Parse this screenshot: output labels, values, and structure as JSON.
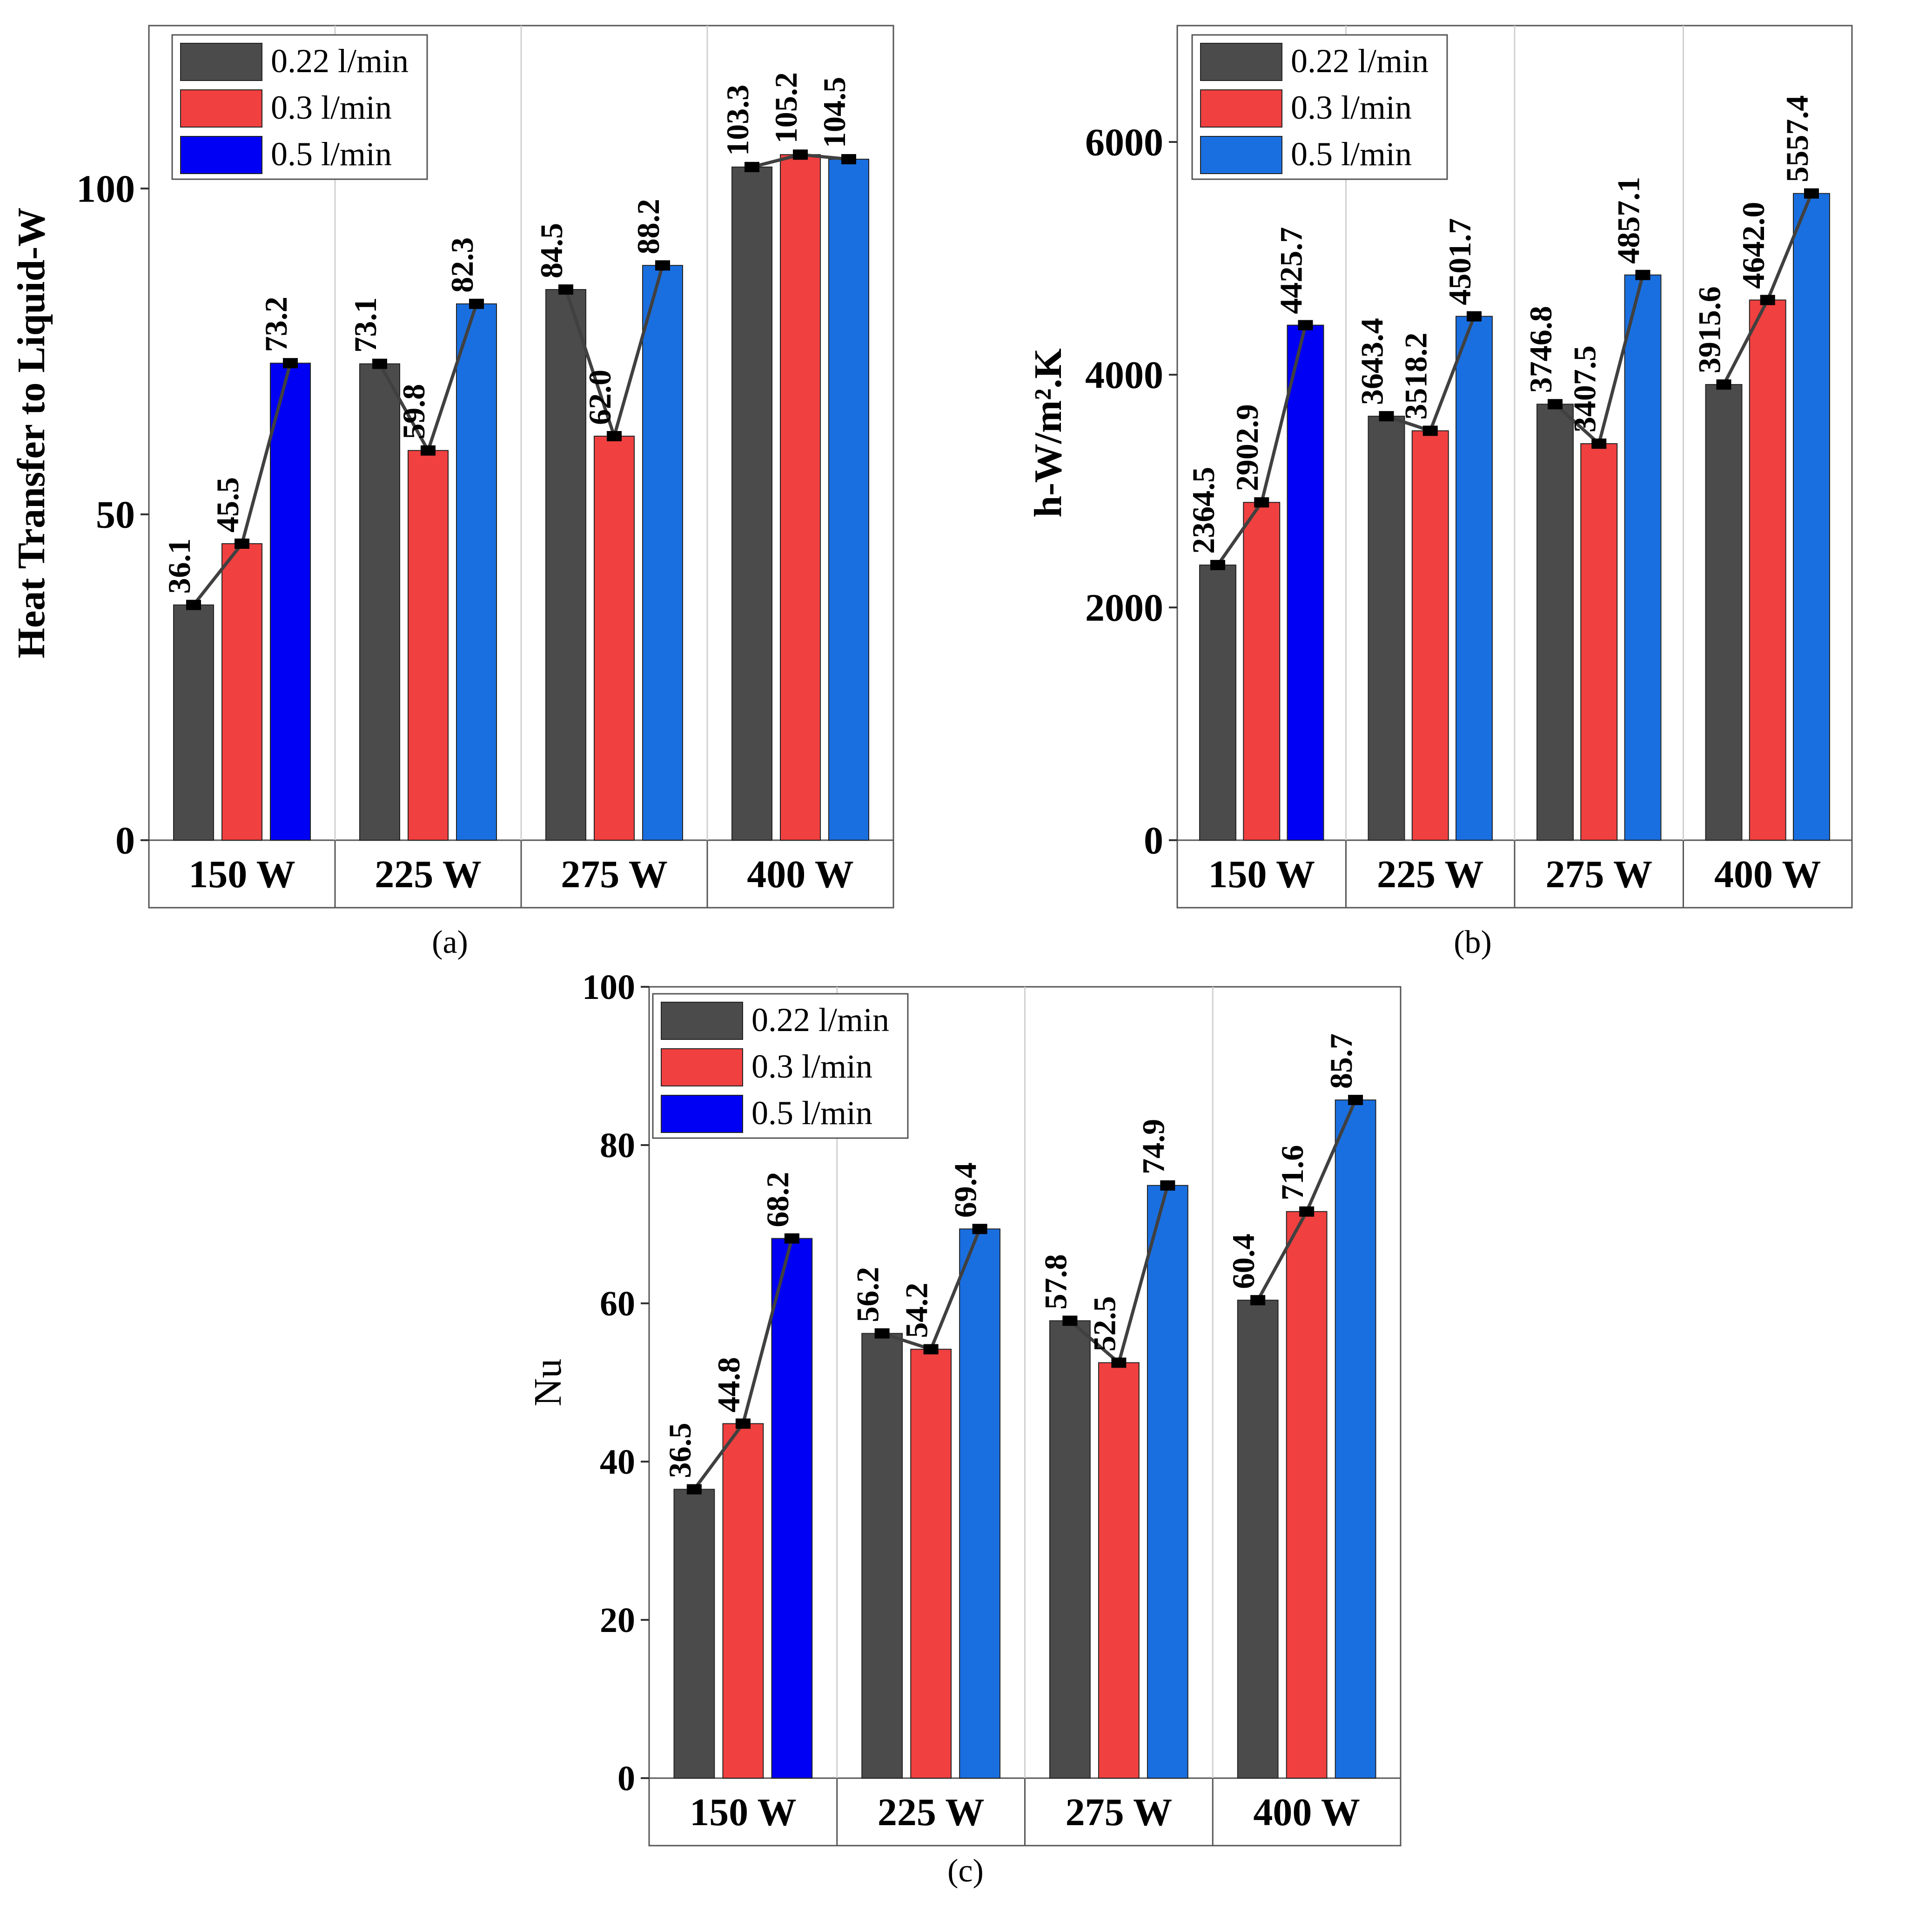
{
  "chart_data": [
    {
      "panel": "(a)",
      "type": "bar",
      "ylabel": "Heat Transfer to Liquid-W",
      "ylabel_bold": true,
      "ylim": [
        0,
        125
      ],
      "yticks": [
        "0",
        "50",
        "100"
      ],
      "ytick_values": [
        0,
        50,
        100
      ],
      "categories": [
        "150 W",
        "225 W",
        "275 W",
        "400 W"
      ],
      "legend_position": "top-left",
      "series": [
        {
          "name": "0.22 l/min",
          "values": [
            36.1,
            73.1,
            84.5,
            103.3
          ],
          "labels": [
            "36.1",
            "73.1",
            "84.5",
            "103.3"
          ]
        },
        {
          "name": "0.3 l/min",
          "values": [
            45.5,
            59.8,
            62.0,
            105.2
          ],
          "labels": [
            "45.5",
            "59.8",
            "62.0",
            "105.2"
          ]
        },
        {
          "name": "0.5 l/min",
          "values": [
            73.2,
            82.3,
            88.2,
            104.5
          ],
          "labels": [
            "73.2",
            "82.3",
            "88.2",
            "104.5"
          ]
        }
      ]
    },
    {
      "panel": "(b)",
      "type": "bar",
      "ylabel": "h-W/m².K",
      "ylabel_bold": true,
      "ylim": [
        0,
        7000
      ],
      "yticks": [
        "0",
        "2000",
        "4000",
        "6000"
      ],
      "ytick_values": [
        0,
        2000,
        4000,
        6000
      ],
      "categories": [
        "150 W",
        "225 W",
        "275 W",
        "400 W"
      ],
      "legend_position": "top-left",
      "series": [
        {
          "name": "0.22 l/min",
          "values": [
            2364.5,
            3643.4,
            3746.8,
            3915.6
          ],
          "labels": [
            "2364.5",
            "3643.4",
            "3746.8",
            "3915.6"
          ]
        },
        {
          "name": "0.3 l/min",
          "values": [
            2902.9,
            3518.2,
            3407.5,
            4642.0
          ],
          "labels": [
            "2902.9",
            "3518.2",
            "3407.5",
            "4642.0"
          ]
        },
        {
          "name": "0.5 l/min",
          "values": [
            4425.7,
            4501.7,
            4857.1,
            5557.4
          ],
          "labels": [
            "4425.7",
            "4501.7",
            "4857.1",
            "5557.4"
          ]
        }
      ]
    },
    {
      "panel": "(c)",
      "type": "bar",
      "ylabel": "Nu",
      "ylabel_bold": false,
      "ylim": [
        0,
        100
      ],
      "yticks": [
        "0",
        "20",
        "40",
        "60",
        "80",
        "100"
      ],
      "ytick_values": [
        0,
        20,
        40,
        60,
        80,
        100
      ],
      "categories": [
        "150 W",
        "225 W",
        "275 W",
        "400 W"
      ],
      "legend_position": "top-left",
      "series": [
        {
          "name": "0.22 l/min",
          "values": [
            36.5,
            56.2,
            57.8,
            60.4
          ],
          "labels": [
            "36.5",
            "56.2",
            "57.8",
            "60.4"
          ]
        },
        {
          "name": "0.3 l/min",
          "values": [
            44.8,
            54.2,
            52.5,
            71.6
          ],
          "labels": [
            "44.8",
            "54.2",
            "52.5",
            "71.6"
          ]
        },
        {
          "name": "0.5 l/min",
          "values": [
            68.2,
            69.4,
            74.9,
            85.7
          ],
          "labels": [
            "68.2",
            "69.4",
            "74.9",
            "85.7"
          ]
        }
      ]
    }
  ],
  "colors": {
    "series_022": "#4b4b4b",
    "series_03": "#f04040",
    "series_05_first": "#0000f5",
    "series_05": "#1a6fe0",
    "connector": "#404040",
    "marker": "#000000",
    "grid": "#d0d0d0"
  }
}
